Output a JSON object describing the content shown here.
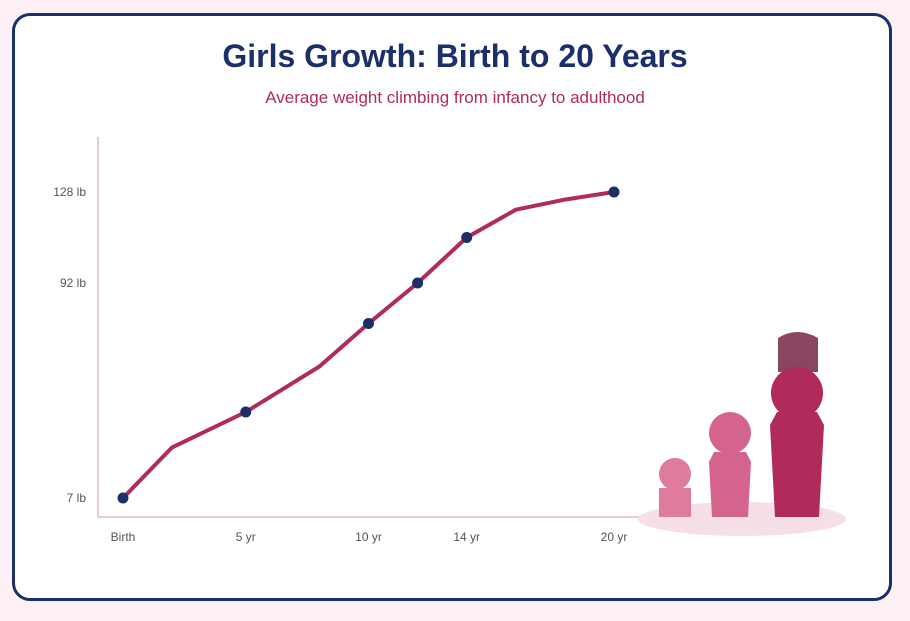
{
  "chart_data": {
    "type": "line",
    "title": "Girls Growth: Birth to 20 Years",
    "subtitle": "Average weight climbing from infancy to adulthood",
    "xlabel": "",
    "ylabel": "",
    "x": [
      0,
      2,
      5,
      8,
      10,
      12,
      14,
      16,
      18,
      20
    ],
    "x_tick_labels": [
      {
        "x": 0,
        "label": "Birth"
      },
      {
        "x": 5,
        "label": "5 yr"
      },
      {
        "x": 10,
        "label": "10 yr"
      },
      {
        "x": 14,
        "label": "14 yr"
      },
      {
        "x": 20,
        "label": "20 yr"
      }
    ],
    "y_tick_labels": [
      {
        "y": 7,
        "label": "7 lb"
      },
      {
        "y": 92,
        "label": "92 lb"
      },
      {
        "y": 128,
        "label": "128 lb"
      }
    ],
    "series": [
      {
        "values": [
          7,
          27,
          41,
          59,
          76,
          92,
          110,
          121,
          125,
          128
        ],
        "markers_at_x": [
          0,
          5,
          10,
          12,
          14,
          20
        ]
      }
    ],
    "xlim": [
      0,
      20
    ],
    "ylim": [
      7,
      128
    ],
    "grid": false,
    "colors": {
      "line": "#b02a5c",
      "marker": "#1b2f6b",
      "axis": "#e8c9d4",
      "title": "#1b2f6b",
      "subtitle": "#b02a5c",
      "figure_small": "#e07ba0",
      "figure_medium": "#d4648d",
      "figure_large": "#b02a5c",
      "figure_hat": "#8a4560",
      "figure_shadow": "#f7dfe8"
    }
  }
}
